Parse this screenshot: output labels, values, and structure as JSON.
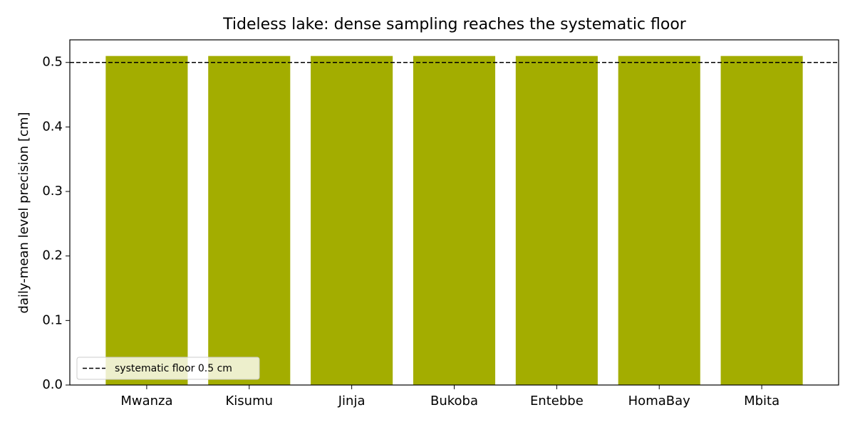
{
  "chart_data": {
    "type": "bar",
    "title": "Tideless lake: dense sampling reaches the systematic floor",
    "y_label": "daily-mean level precision [cm]",
    "categories": [
      "Mwanza",
      "Kisumu",
      "Jinja",
      "Bukoba",
      "Entebbe",
      "HomaBay",
      "Mbita"
    ],
    "values": [
      0.51,
      0.51,
      0.51,
      0.51,
      0.51,
      0.51,
      0.51
    ],
    "color": "#a3ad00",
    "ylim": [
      0,
      0.535
    ],
    "yticks": [
      {
        "value": 0,
        "label": "0.0"
      },
      0.1,
      0.2,
      0.3,
      0.4,
      0.5
    ],
    "reference_line": {
      "value": 0.5,
      "label": "systematic floor 0.5 cm",
      "color": "#000000"
    },
    "legend": "lower left",
    "grid": false
  }
}
